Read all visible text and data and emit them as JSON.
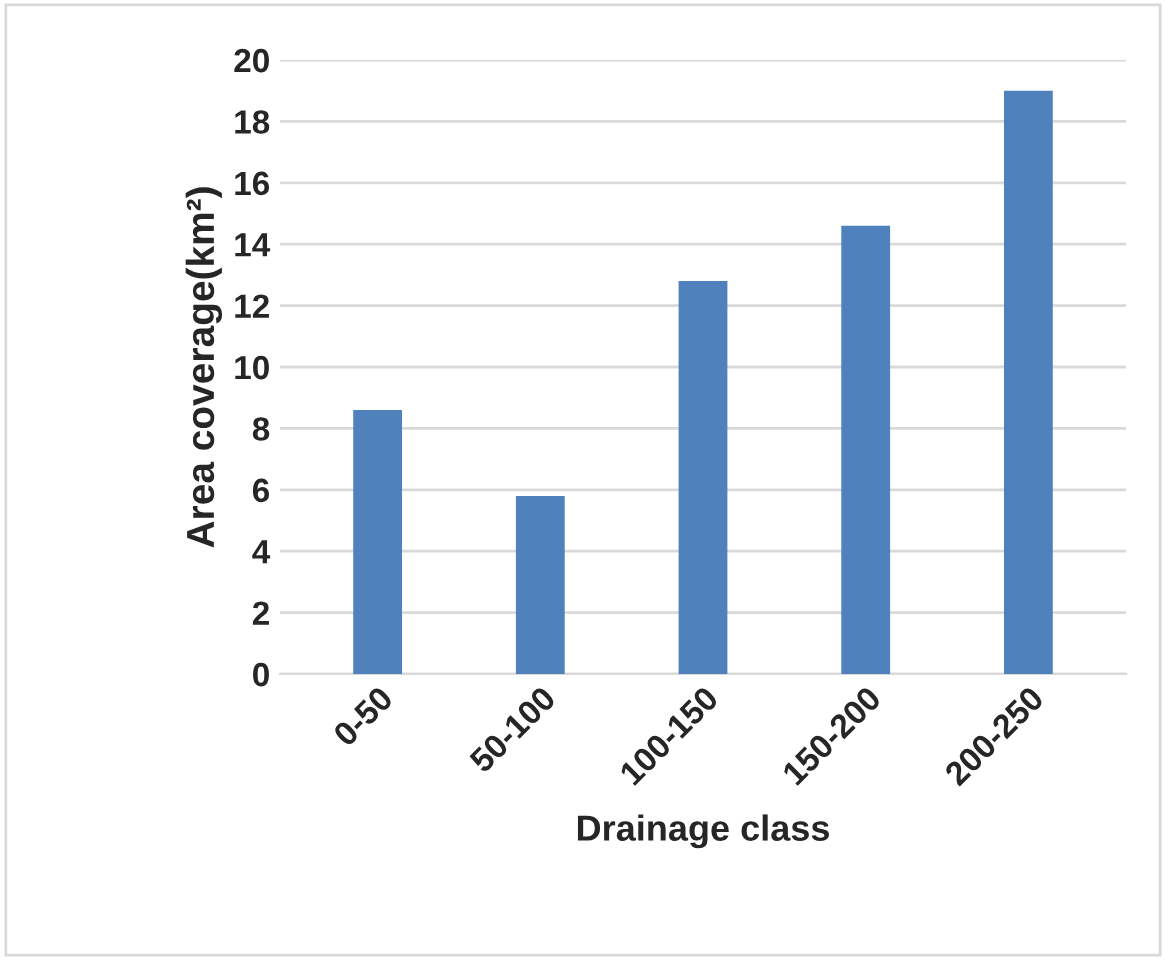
{
  "chart_data": {
    "type": "bar",
    "xlabel": "Drainage class",
    "ylabel": "Area coverage(km²)",
    "categories": [
      "0-50",
      "50-100",
      "100-150",
      "150-200",
      "200-250"
    ],
    "values": [
      8.6,
      5.8,
      12.8,
      14.6,
      19.0
    ],
    "color": "#4f81bd",
    "ylim": [
      0,
      20
    ],
    "yticks": [
      0,
      2,
      4,
      6,
      8,
      10,
      12,
      14,
      16,
      18,
      20
    ],
    "grid": "y"
  }
}
